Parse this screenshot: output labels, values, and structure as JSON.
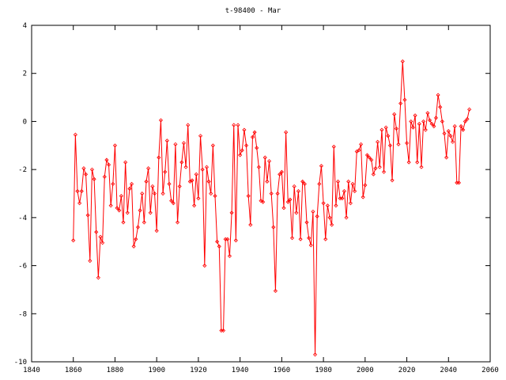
{
  "chart_data": {
    "type": "line",
    "title": "t-98400 - Mar",
    "x": [
      1860,
      1861,
      1862,
      1863,
      1864,
      1865,
      1866,
      1867,
      1868,
      1869,
      1870,
      1871,
      1872,
      1873,
      1874,
      1875,
      1876,
      1877,
      1878,
      1879,
      1880,
      1881,
      1882,
      1883,
      1884,
      1885,
      1886,
      1887,
      1888,
      1889,
      1890,
      1891,
      1892,
      1893,
      1894,
      1895,
      1896,
      1897,
      1898,
      1899,
      1900,
      1901,
      1902,
      1903,
      1904,
      1905,
      1906,
      1907,
      1908,
      1909,
      1910,
      1911,
      1912,
      1913,
      1914,
      1915,
      1916,
      1917,
      1918,
      1919,
      1920,
      1921,
      1922,
      1923,
      1924,
      1925,
      1926,
      1927,
      1928,
      1929,
      1930,
      1931,
      1932,
      1933,
      1934,
      1935,
      1936,
      1937,
      1938,
      1939,
      1940,
      1941,
      1942,
      1943,
      1944,
      1945,
      1946,
      1947,
      1948,
      1949,
      1950,
      1951,
      1952,
      1953,
      1954,
      1955,
      1956,
      1957,
      1958,
      1959,
      1960,
      1961,
      1962,
      1963,
      1964,
      1965,
      1966,
      1967,
      1968,
      1969,
      1970,
      1971,
      1972,
      1973,
      1974,
      1975,
      1976,
      1977,
      1978,
      1979,
      1980,
      1981,
      1982,
      1983,
      1984,
      1985,
      1986,
      1987,
      1988,
      1989,
      1990,
      1991,
      1992,
      1993,
      1994,
      1995,
      1996,
      1997,
      1998,
      1999,
      2000,
      2001,
      2002,
      2003,
      2004,
      2005,
      2006,
      2007,
      2008,
      2009,
      2010,
      2011,
      2012,
      2013,
      2014,
      2015,
      2016,
      2017,
      2018,
      2019,
      2020,
      2021,
      2022,
      2023,
      2024,
      2025,
      2026,
      2027,
      2028,
      2029,
      2030,
      2031,
      2032,
      2033,
      2034,
      2035,
      2036,
      2037,
      2038,
      2039,
      2040,
      2041,
      2042,
      2043,
      2044,
      2045,
      2046,
      2047,
      2048,
      2049,
      2050
    ],
    "series": [
      {
        "color": "#ff0000",
        "values": [
          -4.95,
          -0.55,
          -2.9,
          -3.4,
          -2.9,
          -1.95,
          -2.2,
          -3.9,
          -5.8,
          -2.0,
          -2.4,
          -4.6,
          -6.5,
          -4.8,
          -5.05,
          -2.3,
          -1.6,
          -1.8,
          -3.5,
          -2.6,
          -1.0,
          -3.6,
          -3.7,
          -3.1,
          -4.2,
          -1.7,
          -3.8,
          -2.8,
          -2.6,
          -5.2,
          -4.9,
          -4.4,
          -3.7,
          -3.0,
          -4.2,
          -2.5,
          -1.95,
          -3.8,
          -2.7,
          -3.0,
          -4.55,
          -1.5,
          0.05,
          -3.0,
          -2.1,
          -0.8,
          -2.6,
          -3.3,
          -3.4,
          -0.95,
          -4.2,
          -2.7,
          -1.7,
          -0.9,
          -1.9,
          -0.15,
          -2.5,
          -2.45,
          -3.5,
          -2.2,
          -3.2,
          -0.6,
          -2.0,
          -6.0,
          -1.9,
          -2.5,
          -3.0,
          -1.0,
          -3.1,
          -5.0,
          -5.2,
          -8.7,
          -8.7,
          -4.9,
          -4.9,
          -5.6,
          -3.8,
          -0.15,
          -4.95,
          -0.15,
          -1.4,
          -1.2,
          -0.35,
          -1.0,
          -3.1,
          -4.3,
          -0.65,
          -0.45,
          -1.1,
          -1.9,
          -3.3,
          -3.35,
          -1.5,
          -2.5,
          -1.65,
          -3.0,
          -4.4,
          -7.05,
          -3.0,
          -2.2,
          -2.1,
          -3.6,
          -0.45,
          -3.35,
          -3.25,
          -4.85,
          -2.7,
          -3.8,
          -2.9,
          -4.9,
          -2.5,
          -2.6,
          -4.2,
          -4.85,
          -5.15,
          -3.75,
          -9.7,
          -3.95,
          -2.6,
          -1.85,
          -3.4,
          -4.9,
          -3.5,
          -4.0,
          -4.3,
          -1.05,
          -3.5,
          -2.5,
          -3.2,
          -3.2,
          -2.9,
          -4.0,
          -2.5,
          -3.4,
          -2.6,
          -2.9,
          -1.25,
          -1.2,
          -0.95,
          -3.15,
          -2.65,
          -1.4,
          -1.5,
          -1.6,
          -2.2,
          -1.95,
          -0.85,
          -1.9,
          -0.35,
          -2.1,
          -0.25,
          -0.6,
          -1.0,
          -2.45,
          0.3,
          -0.3,
          -0.95,
          0.75,
          2.5,
          0.9,
          -0.9,
          -1.7,
          0.0,
          -0.25,
          0.25,
          -1.7,
          -0.1,
          -1.9,
          0.0,
          -0.35,
          0.35,
          0.05,
          -0.1,
          -0.2,
          0.15,
          1.1,
          0.6,
          0.0,
          -0.5,
          -1.5,
          -0.4,
          -0.6,
          -0.85,
          -0.2,
          -2.55,
          -2.55,
          -0.2,
          -0.35,
          0.0,
          0.1,
          0.5
        ]
      }
    ],
    "xlim": [
      1840,
      2060
    ],
    "xticks": [
      1840,
      1860,
      1880,
      1900,
      1920,
      1940,
      1960,
      1980,
      2000,
      2020,
      2040,
      2060
    ],
    "ylim": [
      -10,
      4
    ],
    "yticks": [
      -10,
      -8,
      -6,
      -4,
      -2,
      0,
      2,
      4
    ],
    "grid": false
  }
}
